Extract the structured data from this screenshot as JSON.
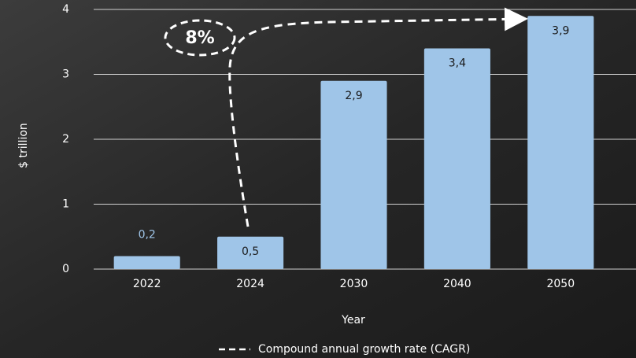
{
  "chart_data": {
    "type": "bar",
    "y_axis_label": "$ trillion",
    "x_axis_label": "Year",
    "categories": [
      "2022",
      "2024",
      "2030",
      "2040",
      "2050"
    ],
    "values": [
      0.2,
      0.5,
      2.9,
      3.4,
      3.9
    ],
    "value_labels": [
      "0,2",
      "0,5",
      "2,9",
      "3,4",
      "3,9"
    ],
    "color": "#9fc5e8",
    "ylim": [
      0,
      4
    ],
    "yticks": [
      0,
      1,
      2,
      3,
      4
    ],
    "grid": true,
    "annotation": "8%",
    "legend_label": "Compound annual growth rate (CAGR)"
  }
}
